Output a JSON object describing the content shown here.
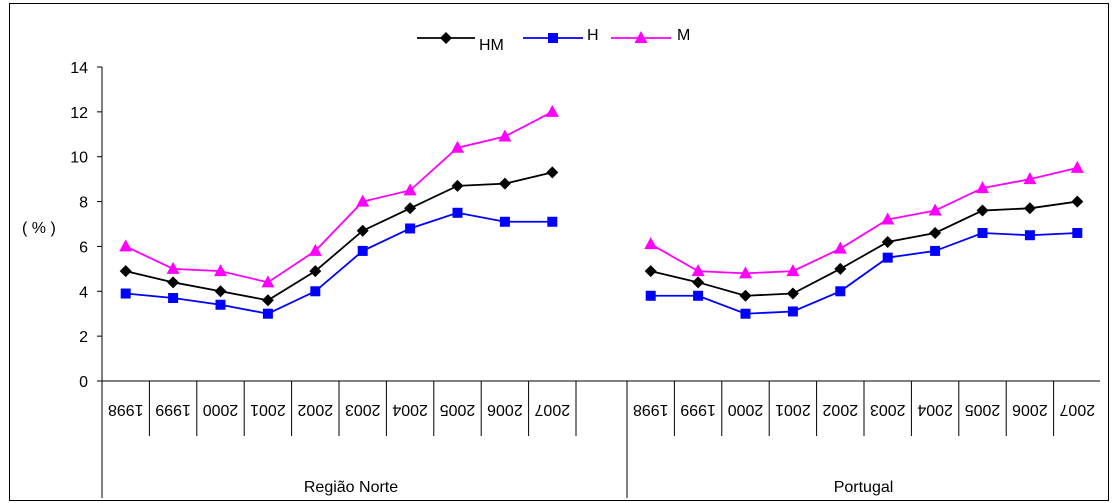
{
  "chart_data": {
    "type": "line",
    "ylabel": "( % )",
    "ylim": [
      0,
      14
    ],
    "yticks": [
      "0",
      "2",
      "4",
      "6",
      "8",
      "10",
      "12",
      "14"
    ],
    "groups": [
      {
        "name": "Região Norte",
        "categories": [
          "1998",
          "1999",
          "2000",
          "2001",
          "2002",
          "2003",
          "2004",
          "2005",
          "2006",
          "2007"
        ]
      },
      {
        "name": "Portugal",
        "categories": [
          "1998",
          "1999",
          "2000",
          "2001",
          "2002",
          "2003",
          "2004",
          "2005",
          "2006",
          "2007"
        ]
      }
    ],
    "legend_position": "top",
    "series": [
      {
        "name": "HM",
        "color": "#000000",
        "marker": "diamond",
        "values": [
          [
            4.9,
            4.4,
            4.0,
            3.6,
            4.9,
            6.7,
            7.7,
            8.7,
            8.8,
            9.3
          ],
          [
            4.9,
            4.4,
            3.8,
            3.9,
            5.0,
            6.2,
            6.6,
            7.6,
            7.7,
            8.0
          ]
        ]
      },
      {
        "name": "H",
        "color": "#0000ff",
        "marker": "square",
        "values": [
          [
            3.9,
            3.7,
            3.4,
            3.0,
            4.0,
            5.8,
            6.8,
            7.5,
            7.1,
            7.1
          ],
          [
            3.8,
            3.8,
            3.0,
            3.1,
            4.0,
            5.5,
            5.8,
            6.6,
            6.5,
            6.6
          ]
        ]
      },
      {
        "name": "M",
        "color": "#ff00ff",
        "marker": "triangle",
        "values": [
          [
            6.0,
            5.0,
            4.9,
            4.4,
            5.8,
            8.0,
            8.5,
            10.4,
            10.9,
            12.0
          ],
          [
            6.1,
            4.9,
            4.8,
            4.9,
            5.9,
            7.2,
            7.6,
            8.6,
            9.0,
            9.5
          ]
        ]
      }
    ]
  }
}
